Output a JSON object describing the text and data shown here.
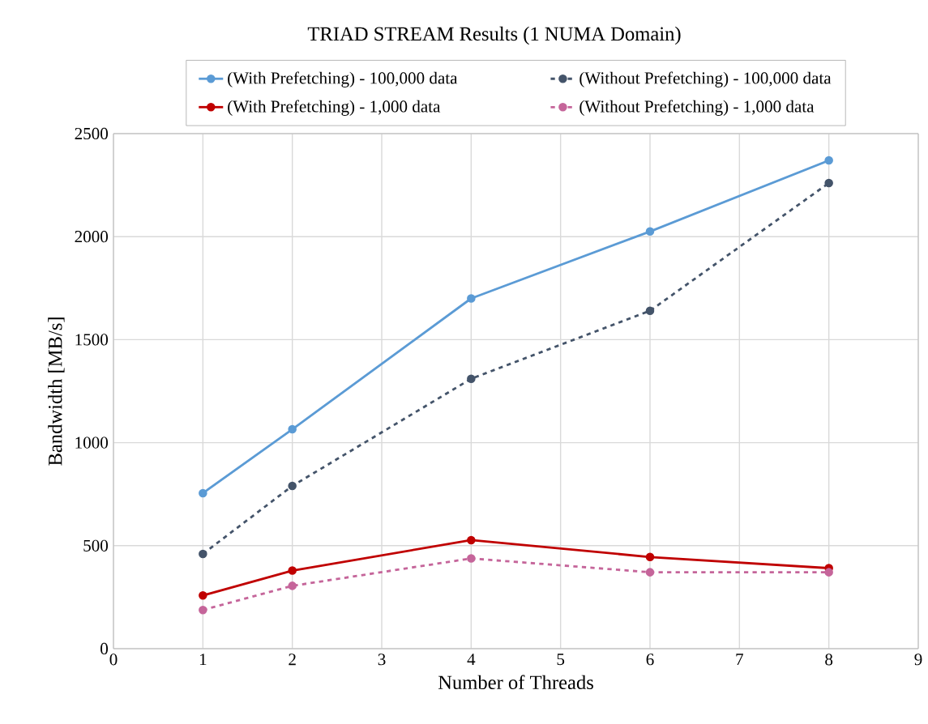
{
  "chart_data": {
    "type": "line",
    "title": "TRIAD STREAM Results (1 NUMA Domain)",
    "xlabel": "Number of Threads",
    "ylabel": "Bandwidth [MB/s]",
    "x": [
      1,
      2,
      4,
      6,
      8
    ],
    "series": [
      {
        "name": "(With Prefetching) - 100,000 data",
        "color": "#5b9bd5",
        "line_style": "solid",
        "values": [
          755,
          1065,
          1700,
          2025,
          2370
        ]
      },
      {
        "name": "(Without Prefetching) - 100,000 data",
        "color": "#44546a",
        "line_style": "dashed",
        "values": [
          460,
          790,
          1310,
          1640,
          2260
        ]
      },
      {
        "name": "(With Prefetching) - 1,000 data",
        "color": "#c00000",
        "line_style": "solid",
        "values": [
          258,
          379,
          527,
          445,
          391
        ]
      },
      {
        "name": "(Without Prefetching) - 1,000 data",
        "color": "#c5659a",
        "line_style": "dashed",
        "values": [
          188,
          305,
          438,
          371,
          371
        ]
      }
    ],
    "xlim": [
      0,
      9
    ],
    "xticks": [
      0,
      1,
      2,
      3,
      4,
      5,
      6,
      7,
      8,
      9
    ],
    "ylim": [
      0,
      2500
    ],
    "yticks": [
      0,
      500,
      1000,
      1500,
      2000,
      2500
    ],
    "grid": true,
    "legend": "top",
    "marker": "circle"
  }
}
